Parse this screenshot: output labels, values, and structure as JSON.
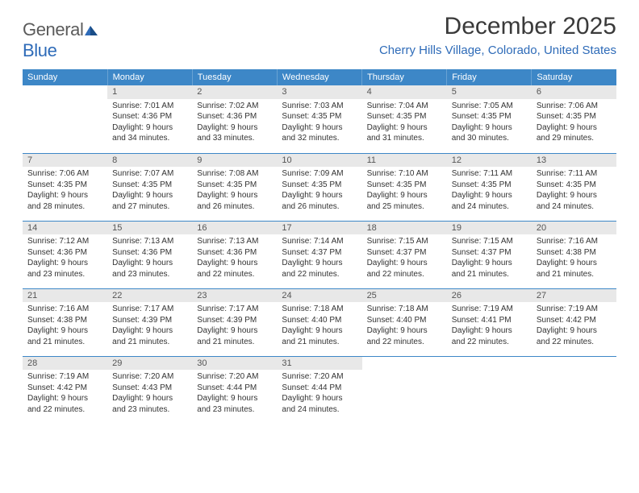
{
  "logo": {
    "left": "General",
    "right": "Blue"
  },
  "header": {
    "month": "December 2025",
    "location": "Cherry Hills Village, Colorado, United States"
  },
  "colors": {
    "header_bg": "#3d87c7",
    "header_fg": "#ffffff",
    "location": "#2e6bb8",
    "rule": "#3d87c7",
    "daybar": "#e8e8e8",
    "text": "#333333"
  },
  "weekdays": [
    "Sunday",
    "Monday",
    "Tuesday",
    "Wednesday",
    "Thursday",
    "Friday",
    "Saturday"
  ],
  "weeks": [
    [
      null,
      {
        "num": "1",
        "sunrise": "7:01 AM",
        "sunset": "4:36 PM",
        "daylight": "9 hours and 34 minutes."
      },
      {
        "num": "2",
        "sunrise": "7:02 AM",
        "sunset": "4:36 PM",
        "daylight": "9 hours and 33 minutes."
      },
      {
        "num": "3",
        "sunrise": "7:03 AM",
        "sunset": "4:35 PM",
        "daylight": "9 hours and 32 minutes."
      },
      {
        "num": "4",
        "sunrise": "7:04 AM",
        "sunset": "4:35 PM",
        "daylight": "9 hours and 31 minutes."
      },
      {
        "num": "5",
        "sunrise": "7:05 AM",
        "sunset": "4:35 PM",
        "daylight": "9 hours and 30 minutes."
      },
      {
        "num": "6",
        "sunrise": "7:06 AM",
        "sunset": "4:35 PM",
        "daylight": "9 hours and 29 minutes."
      }
    ],
    [
      {
        "num": "7",
        "sunrise": "7:06 AM",
        "sunset": "4:35 PM",
        "daylight": "9 hours and 28 minutes."
      },
      {
        "num": "8",
        "sunrise": "7:07 AM",
        "sunset": "4:35 PM",
        "daylight": "9 hours and 27 minutes."
      },
      {
        "num": "9",
        "sunrise": "7:08 AM",
        "sunset": "4:35 PM",
        "daylight": "9 hours and 26 minutes."
      },
      {
        "num": "10",
        "sunrise": "7:09 AM",
        "sunset": "4:35 PM",
        "daylight": "9 hours and 26 minutes."
      },
      {
        "num": "11",
        "sunrise": "7:10 AM",
        "sunset": "4:35 PM",
        "daylight": "9 hours and 25 minutes."
      },
      {
        "num": "12",
        "sunrise": "7:11 AM",
        "sunset": "4:35 PM",
        "daylight": "9 hours and 24 minutes."
      },
      {
        "num": "13",
        "sunrise": "7:11 AM",
        "sunset": "4:35 PM",
        "daylight": "9 hours and 24 minutes."
      }
    ],
    [
      {
        "num": "14",
        "sunrise": "7:12 AM",
        "sunset": "4:36 PM",
        "daylight": "9 hours and 23 minutes."
      },
      {
        "num": "15",
        "sunrise": "7:13 AM",
        "sunset": "4:36 PM",
        "daylight": "9 hours and 23 minutes."
      },
      {
        "num": "16",
        "sunrise": "7:13 AM",
        "sunset": "4:36 PM",
        "daylight": "9 hours and 22 minutes."
      },
      {
        "num": "17",
        "sunrise": "7:14 AM",
        "sunset": "4:37 PM",
        "daylight": "9 hours and 22 minutes."
      },
      {
        "num": "18",
        "sunrise": "7:15 AM",
        "sunset": "4:37 PM",
        "daylight": "9 hours and 22 minutes."
      },
      {
        "num": "19",
        "sunrise": "7:15 AM",
        "sunset": "4:37 PM",
        "daylight": "9 hours and 21 minutes."
      },
      {
        "num": "20",
        "sunrise": "7:16 AM",
        "sunset": "4:38 PM",
        "daylight": "9 hours and 21 minutes."
      }
    ],
    [
      {
        "num": "21",
        "sunrise": "7:16 AM",
        "sunset": "4:38 PM",
        "daylight": "9 hours and 21 minutes."
      },
      {
        "num": "22",
        "sunrise": "7:17 AM",
        "sunset": "4:39 PM",
        "daylight": "9 hours and 21 minutes."
      },
      {
        "num": "23",
        "sunrise": "7:17 AM",
        "sunset": "4:39 PM",
        "daylight": "9 hours and 21 minutes."
      },
      {
        "num": "24",
        "sunrise": "7:18 AM",
        "sunset": "4:40 PM",
        "daylight": "9 hours and 21 minutes."
      },
      {
        "num": "25",
        "sunrise": "7:18 AM",
        "sunset": "4:40 PM",
        "daylight": "9 hours and 22 minutes."
      },
      {
        "num": "26",
        "sunrise": "7:19 AM",
        "sunset": "4:41 PM",
        "daylight": "9 hours and 22 minutes."
      },
      {
        "num": "27",
        "sunrise": "7:19 AM",
        "sunset": "4:42 PM",
        "daylight": "9 hours and 22 minutes."
      }
    ],
    [
      {
        "num": "28",
        "sunrise": "7:19 AM",
        "sunset": "4:42 PM",
        "daylight": "9 hours and 22 minutes."
      },
      {
        "num": "29",
        "sunrise": "7:20 AM",
        "sunset": "4:43 PM",
        "daylight": "9 hours and 23 minutes."
      },
      {
        "num": "30",
        "sunrise": "7:20 AM",
        "sunset": "4:44 PM",
        "daylight": "9 hours and 23 minutes."
      },
      {
        "num": "31",
        "sunrise": "7:20 AM",
        "sunset": "4:44 PM",
        "daylight": "9 hours and 24 minutes."
      },
      null,
      null,
      null
    ]
  ],
  "labels": {
    "sunrise": "Sunrise:",
    "sunset": "Sunset:",
    "daylight": "Daylight:"
  }
}
